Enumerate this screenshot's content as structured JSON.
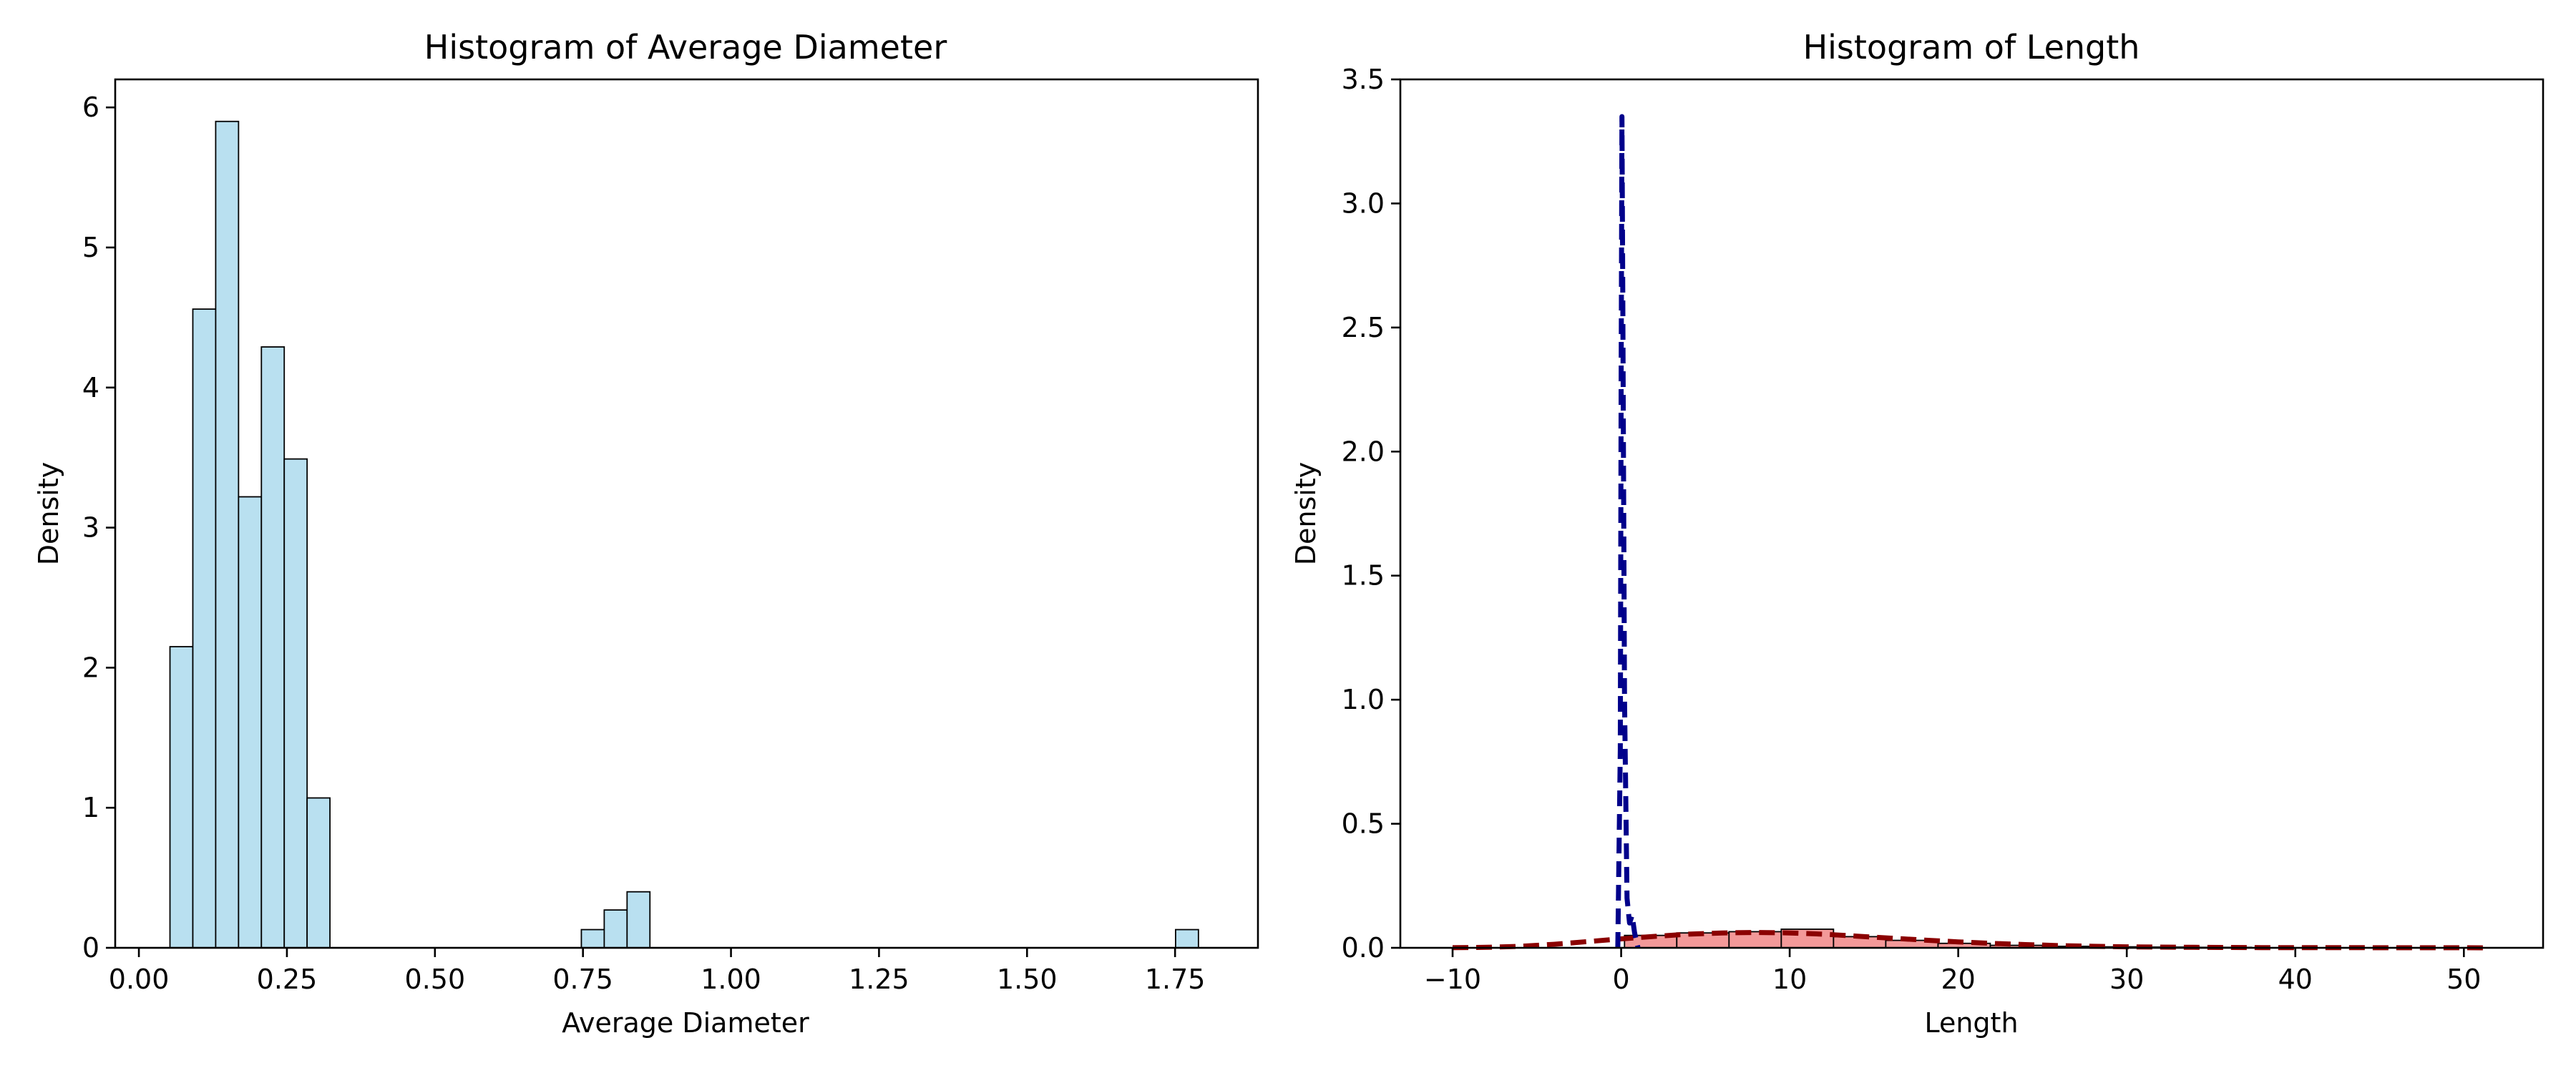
{
  "chart_data": [
    {
      "type": "bar",
      "title": "Histogram of Average Diameter",
      "xlabel": "Average Diameter",
      "ylabel": "Density",
      "xlim": [
        -0.04,
        1.89
      ],
      "ylim": [
        0,
        6.2
      ],
      "xticks": [
        0.0,
        0.25,
        0.5,
        0.75,
        1.0,
        1.25,
        1.5,
        1.75
      ],
      "xtick_labels": [
        "0.00",
        "0.25",
        "0.50",
        "0.75",
        "1.00",
        "1.25",
        "1.50",
        "1.75"
      ],
      "yticks": [
        0,
        1,
        2,
        3,
        4,
        5,
        6
      ],
      "ytick_labels": [
        "0",
        "1",
        "2",
        "3",
        "4",
        "5",
        "6"
      ],
      "bin_width": 0.0386,
      "bins": [
        {
          "x0": 0.0525,
          "value": 2.15
        },
        {
          "x0": 0.0911,
          "value": 4.56
        },
        {
          "x0": 0.1297,
          "value": 5.9
        },
        {
          "x0": 0.1683,
          "value": 3.22
        },
        {
          "x0": 0.2069,
          "value": 4.29
        },
        {
          "x0": 0.2455,
          "value": 3.49
        },
        {
          "x0": 0.2841,
          "value": 1.07
        },
        {
          "x0": 0.7473,
          "value": 0.13
        },
        {
          "x0": 0.7859,
          "value": 0.27
        },
        {
          "x0": 0.8245,
          "value": 0.4
        },
        {
          "x0": 1.7509,
          "value": 0.13
        }
      ],
      "colors": {
        "bar_fill": "#b9e0f0",
        "bar_edge": "#000000"
      }
    },
    {
      "type": "bar",
      "title": "Histogram of Length",
      "xlabel": "Length",
      "ylabel": "Density",
      "xlim": [
        -13.1,
        54.7
      ],
      "ylim": [
        0,
        3.5
      ],
      "xticks": [
        -10,
        0,
        10,
        20,
        30,
        40,
        50
      ],
      "xtick_labels": [
        "−10",
        "0",
        "10",
        "20",
        "30",
        "40",
        "50"
      ],
      "yticks": [
        0.0,
        0.5,
        1.0,
        1.5,
        2.0,
        2.5,
        3.0,
        3.5
      ],
      "ytick_labels": [
        "0.0",
        "0.5",
        "1.0",
        "1.5",
        "2.0",
        "2.5",
        "3.0",
        "3.5"
      ],
      "bin_width": 3.1,
      "bins": [
        {
          "x0": 0.2,
          "value": 0.05
        },
        {
          "x0": 3.3,
          "value": 0.06
        },
        {
          "x0": 6.4,
          "value": 0.065
        },
        {
          "x0": 9.5,
          "value": 0.075
        },
        {
          "x0": 12.6,
          "value": 0.045
        },
        {
          "x0": 15.7,
          "value": 0.03
        },
        {
          "x0": 18.8,
          "value": 0.018
        },
        {
          "x0": 21.9,
          "value": 0.01
        },
        {
          "x0": 25.0,
          "value": 0.006
        },
        {
          "x0": 28.1,
          "value": 0.004
        },
        {
          "x0": 31.2,
          "value": 0.003
        },
        {
          "x0": 34.3,
          "value": 0.002
        }
      ],
      "kde_red": {
        "x": [
          -10,
          -8,
          -6,
          -4,
          -2,
          0,
          2,
          4,
          6,
          8,
          10,
          12,
          14,
          16,
          18,
          20,
          22,
          24,
          26,
          28,
          30,
          32,
          34,
          36,
          38,
          40,
          42,
          44,
          46,
          48,
          50,
          51.5
        ],
        "y": [
          0.0005,
          0.002,
          0.006,
          0.014,
          0.025,
          0.036,
          0.046,
          0.055,
          0.06,
          0.062,
          0.06,
          0.055,
          0.047,
          0.039,
          0.031,
          0.024,
          0.018,
          0.013,
          0.009,
          0.006,
          0.004,
          0.003,
          0.002,
          0.0015,
          0.001,
          0.0008,
          0.0006,
          0.0005,
          0.0004,
          0.0003,
          0.0002,
          0.0001
        ]
      },
      "kde_blue": {
        "x": [
          -0.2,
          -0.05,
          0.0,
          0.05,
          0.1,
          0.2,
          0.35,
          0.5,
          0.65,
          0.8,
          1.0
        ],
        "y": [
          0.0,
          0.8,
          2.3,
          3.35,
          2.6,
          1.0,
          0.2,
          0.1,
          0.13,
          0.06,
          0.0
        ]
      },
      "colors": {
        "bar_fill": "#f08080",
        "bar_edge": "#000000",
        "kde_red": "#8b0000",
        "kde_blue": "#00008b"
      }
    }
  ]
}
